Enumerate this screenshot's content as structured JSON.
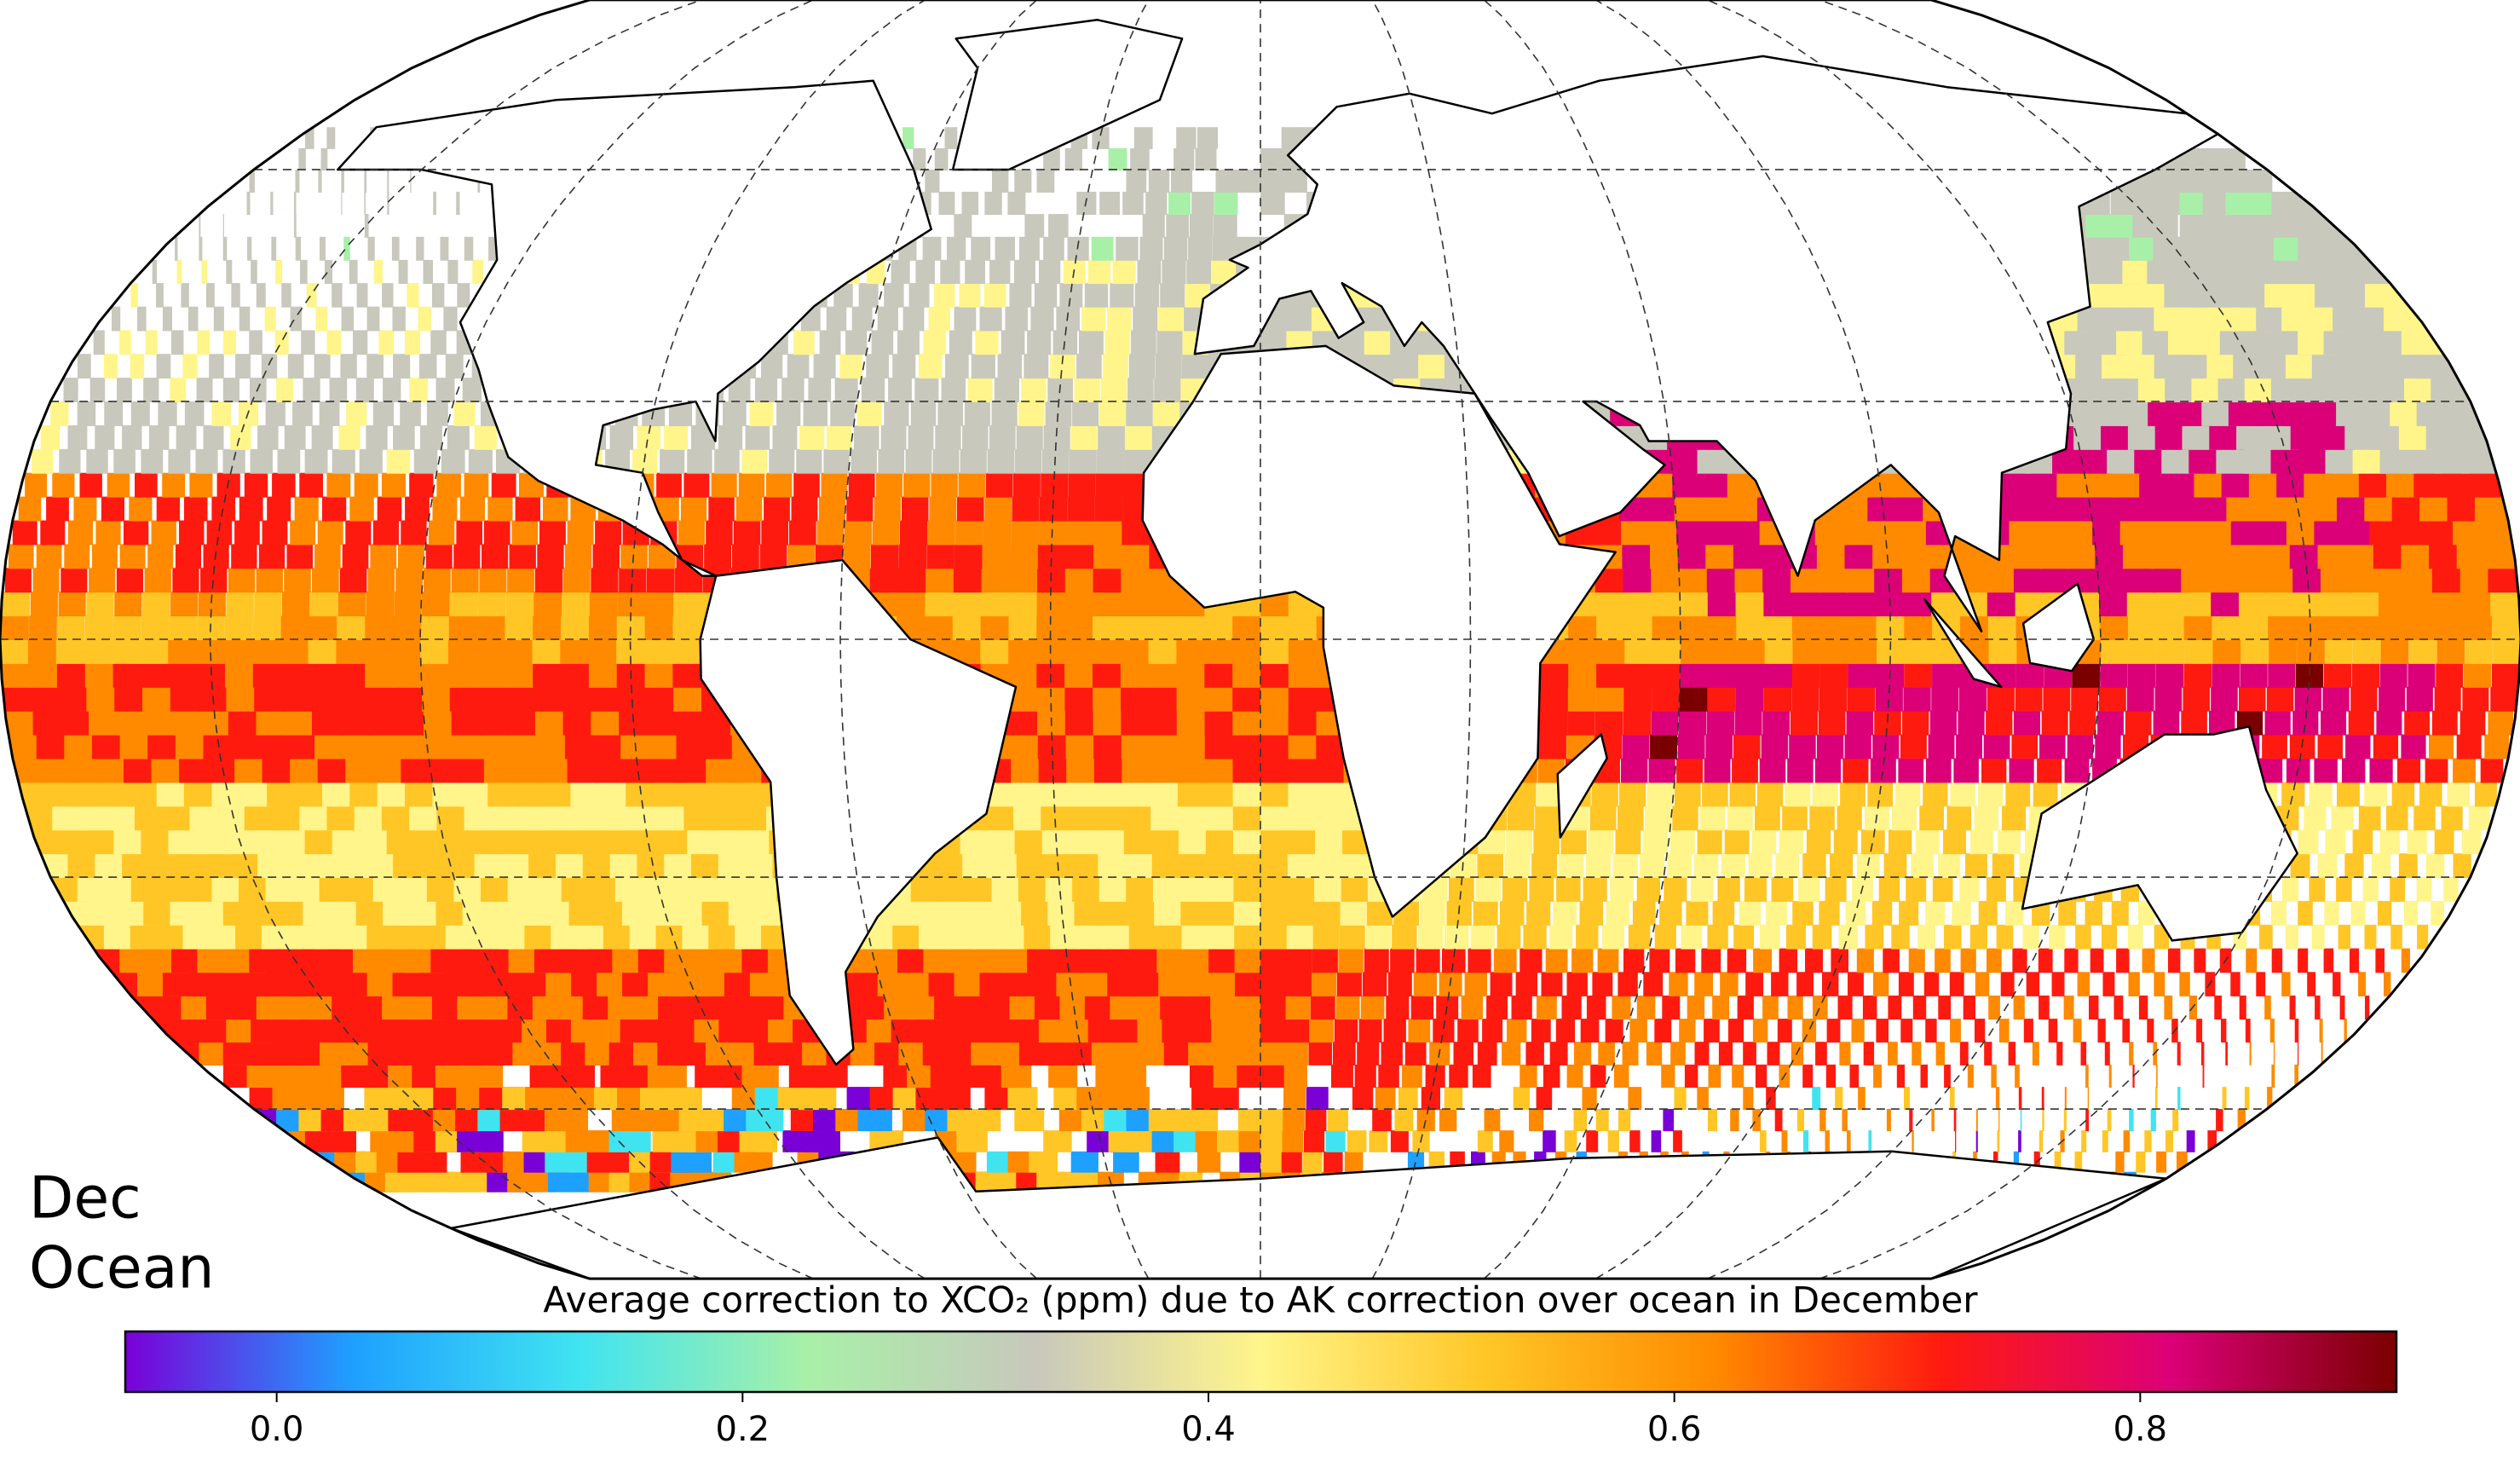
{
  "chart_data": {
    "type": "map",
    "title": "Average correction to XCO₂ (ppm) due to AK correction over ocean in December",
    "annotations": [
      "Dec",
      "Ocean"
    ],
    "grid": true,
    "colorbar": {
      "lim": [
        -0.065,
        0.91
      ],
      "ticks": [
        {
          "value": 0,
          "label": "0.0"
        },
        {
          "value": 0.2,
          "label": "0.2"
        },
        {
          "value": 0.4,
          "label": "0.4"
        },
        {
          "value": 0.6,
          "label": "0.6"
        },
        {
          "value": 0.8,
          "label": "0.8"
        }
      ],
      "colors": [
        "#7a00d8",
        "#1ea0ff",
        "#40e4f0",
        "#a8f0a8",
        "#c8c8bc",
        "#fff58a",
        "#ffc626",
        "#ff8a00",
        "#ff1a10",
        "#dc0078",
        "#7a0000"
      ]
    }
  }
}
